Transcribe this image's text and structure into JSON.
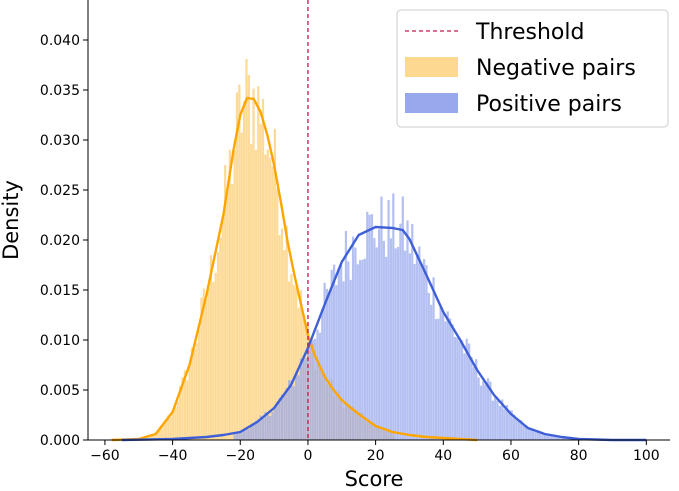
{
  "chart_data": {
    "type": "histogram",
    "title": "",
    "xlabel": "Score",
    "ylabel": "Density",
    "xlim": [
      -65,
      107
    ],
    "ylim": [
      0,
      0.044
    ],
    "xticks": [
      -60,
      -40,
      -20,
      0,
      20,
      40,
      60,
      80,
      100
    ],
    "xtick_labels": [
      "−60",
      "−40",
      "−20",
      "0",
      "20",
      "40",
      "60",
      "80",
      "100"
    ],
    "yticks": [
      0,
      0.005,
      0.01,
      0.015,
      0.02,
      0.025,
      0.03,
      0.035,
      0.04
    ],
    "ytick_labels": [
      "0.000",
      "0.005",
      "0.010",
      "0.015",
      "0.020",
      "0.025",
      "0.030",
      "0.035",
      "0.040"
    ],
    "bin_width": 0.7,
    "threshold": {
      "label": "Threshold",
      "x": 0,
      "color": "#c9184a",
      "style": "dashed"
    },
    "series": [
      {
        "name": "Negative pairs",
        "color": "#ffa500",
        "hist_color": "#fdd891",
        "range": [
          -50,
          25
        ],
        "kde_x": [
          -58,
          -50,
          -45,
          -40,
          -35,
          -30,
          -25,
          -22,
          -20,
          -18,
          -16,
          -14,
          -12,
          -10,
          -8,
          -6,
          -4,
          -2,
          0,
          2,
          5,
          8,
          10,
          12,
          15,
          20,
          25,
          30,
          35,
          40,
          45,
          50
        ],
        "kde_y": [
          0,
          0.0001,
          0.0006,
          0.0028,
          0.0075,
          0.0145,
          0.0225,
          0.029,
          0.0325,
          0.0342,
          0.0341,
          0.0328,
          0.0305,
          0.0275,
          0.0238,
          0.0198,
          0.0165,
          0.0135,
          0.0105,
          0.0085,
          0.0063,
          0.0048,
          0.004,
          0.0034,
          0.0026,
          0.0014,
          0.0008,
          0.0005,
          0.0003,
          0.0002,
          0.0001,
          0
        ]
      },
      {
        "name": "Positive pairs",
        "color": "#3e5fd6",
        "hist_color": "#97a8ed",
        "range": [
          -22,
          92
        ],
        "kde_x": [
          -55,
          -40,
          -30,
          -25,
          -20,
          -15,
          -10,
          -5,
          0,
          5,
          10,
          15,
          20,
          25,
          28,
          30,
          35,
          40,
          45,
          50,
          55,
          60,
          65,
          70,
          75,
          80,
          90,
          100
        ],
        "kde_y": [
          0,
          0.0001,
          0.0003,
          0.0005,
          0.0008,
          0.0018,
          0.0032,
          0.0055,
          0.0092,
          0.0136,
          0.0178,
          0.0205,
          0.0213,
          0.0212,
          0.021,
          0.0201,
          0.0165,
          0.0128,
          0.01,
          0.007,
          0.0045,
          0.0026,
          0.0012,
          0.0006,
          0.0003,
          0.0001,
          0,
          0
        ]
      }
    ],
    "legend": {
      "position": "top-right",
      "entries": [
        {
          "label": "Threshold",
          "kind": "dashed-line",
          "color": "#c9184a"
        },
        {
          "label": "Negative pairs",
          "kind": "patch",
          "color": "#fdd891"
        },
        {
          "label": "Positive pairs",
          "kind": "patch",
          "color": "#97a8ed"
        }
      ]
    }
  }
}
